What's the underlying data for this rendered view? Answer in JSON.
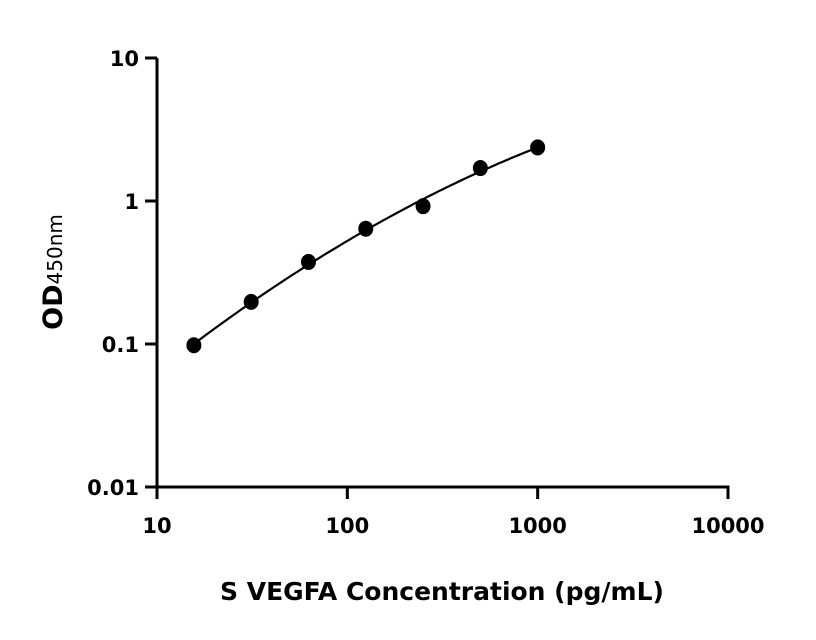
{
  "chart_data": {
    "type": "scatter",
    "title": "",
    "xlabel": "S VEGFA Concentration (pg/mL)",
    "ylabel_main": "OD",
    "ylabel_sub": "450nm",
    "x_scale": "log",
    "y_scale": "log",
    "xlim": [
      10,
      10000
    ],
    "ylim": [
      0.01,
      10
    ],
    "x_ticks": [
      "10",
      "100",
      "1000",
      "10000"
    ],
    "y_ticks": [
      "0.01",
      "0.1",
      "1",
      "10"
    ],
    "grid": false,
    "fit_curve": true,
    "series": [
      {
        "x": [
          15.625,
          31.25,
          62.5,
          125,
          250,
          500,
          1000
        ],
        "y": [
          0.098,
          0.197,
          0.375,
          0.64,
          0.92,
          1.7,
          2.37
        ]
      }
    ],
    "colors": {
      "marker": "#000000",
      "line": "#000000"
    }
  }
}
